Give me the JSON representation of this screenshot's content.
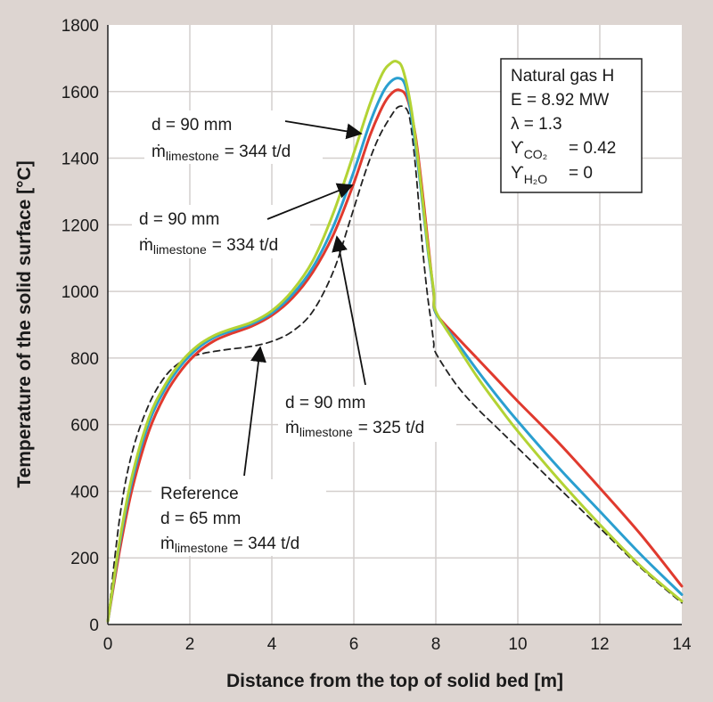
{
  "chart_data": {
    "type": "line",
    "title": "",
    "xlabel": "Distance from the top of solid bed [m]",
    "ylabel": "Temperature of the solid surface [°C]",
    "xlim": [
      0,
      14
    ],
    "ylim": [
      0,
      1800
    ],
    "xticks": [
      "0",
      "2",
      "4",
      "6",
      "8",
      "10",
      "12",
      "14"
    ],
    "yticks": [
      "0",
      "200",
      "400",
      "600",
      "800",
      "1000",
      "1200",
      "1400",
      "1600",
      "1800"
    ],
    "grid": true,
    "series": [
      {
        "name": "d = 90 mm, ṁlimestone = 344 t/d",
        "color": "#b3d334",
        "style": "solid",
        "x": [
          0,
          0.3,
          0.6,
          1.0,
          1.4,
          1.8,
          2.2,
          2.6,
          3.0,
          3.5,
          4.0,
          4.5,
          5.0,
          5.5,
          6.0,
          6.4,
          6.7,
          6.9,
          7.05,
          7.2,
          7.4,
          7.6,
          7.8,
          7.95,
          8.0,
          8.5,
          9.0,
          9.5,
          10.0,
          11.0,
          12.0,
          13.0,
          14.0
        ],
        "values": [
          10,
          260,
          450,
          620,
          720,
          790,
          838,
          868,
          887,
          907,
          942,
          1002,
          1092,
          1235,
          1415,
          1565,
          1655,
          1685,
          1690,
          1665,
          1550,
          1360,
          1140,
          1000,
          940,
          840,
          745,
          660,
          580,
          435,
          300,
          175,
          70
        ]
      },
      {
        "name": "d = 90 mm, ṁlimestone = 334 t/d",
        "color": "#2a9fd0",
        "style": "solid",
        "x": [
          0,
          0.3,
          0.6,
          1.0,
          1.4,
          1.8,
          2.2,
          2.6,
          3.0,
          3.5,
          4.0,
          4.5,
          5.0,
          5.5,
          6.0,
          6.4,
          6.7,
          6.9,
          7.1,
          7.25,
          7.4,
          7.6,
          7.8,
          7.95,
          8.0,
          8.5,
          9.0,
          9.5,
          10.0,
          11.0,
          12.0,
          13.0,
          14.0
        ],
        "values": [
          10,
          250,
          435,
          605,
          708,
          780,
          830,
          862,
          881,
          902,
          935,
          990,
          1072,
          1195,
          1360,
          1508,
          1595,
          1630,
          1640,
          1620,
          1530,
          1345,
          1130,
          995,
          935,
          850,
          765,
          685,
          610,
          470,
          340,
          210,
          90
        ]
      },
      {
        "name": "d = 90 mm, ṁlimestone = 325 t/d",
        "color": "#e03a2e",
        "style": "solid",
        "x": [
          0,
          0.3,
          0.6,
          1.0,
          1.4,
          1.8,
          2.2,
          2.6,
          3.0,
          3.5,
          4.0,
          4.5,
          5.0,
          5.5,
          6.0,
          6.4,
          6.7,
          6.9,
          7.1,
          7.3,
          7.5,
          7.7,
          7.85,
          7.95,
          8.0,
          8.5,
          9.0,
          9.5,
          10.0,
          11.0,
          12.0,
          13.0,
          14.0
        ],
        "values": [
          10,
          230,
          410,
          580,
          690,
          765,
          818,
          852,
          873,
          895,
          928,
          980,
          1058,
          1170,
          1325,
          1470,
          1555,
          1592,
          1605,
          1580,
          1470,
          1270,
          1100,
          990,
          935,
          865,
          800,
          735,
          670,
          545,
          410,
          270,
          115
        ]
      },
      {
        "name": "Reference, d = 65 mm, ṁlimestone = 344 t/d",
        "color": "#222222",
        "style": "dashed",
        "x": [
          0,
          0.3,
          0.6,
          1.0,
          1.4,
          1.8,
          2.2,
          2.6,
          3.0,
          3.5,
          4.0,
          4.5,
          5.0,
          5.5,
          5.9,
          6.3,
          6.6,
          6.9,
          7.1,
          7.3,
          7.4,
          7.5,
          7.6,
          7.7,
          7.8,
          7.9,
          7.95,
          8.0,
          8.5,
          9.0,
          9.5,
          10.0,
          11.0,
          12.0,
          13.0,
          14.0
        ],
        "values": [
          10,
          330,
          520,
          660,
          745,
          790,
          810,
          820,
          827,
          835,
          850,
          880,
          940,
          1060,
          1210,
          1365,
          1460,
          1525,
          1555,
          1545,
          1490,
          1380,
          1240,
          1100,
          985,
          895,
          845,
          815,
          720,
          650,
          590,
          530,
          410,
          290,
          170,
          65
        ]
      }
    ],
    "info_box": {
      "line1": "Natural gas H",
      "line2": "E = 8.92 MW",
      "line3": "λ = 1.3",
      "line4_symbol": "ϒ",
      "line4_sub": "CO₂",
      "line4_value": "= 0.42",
      "line5_symbol": "ϒ",
      "line5_sub": "H₂O",
      "line5_value": "= 0"
    },
    "annotations": [
      {
        "line1": "d = 90 mm",
        "mdot": "ṁ",
        "sub": "limestone",
        "value": "= 344 t/d"
      },
      {
        "line1": "d = 90 mm",
        "mdot": "ṁ",
        "sub": "limestone",
        "value": "= 334 t/d"
      },
      {
        "line1": "d = 90 mm",
        "mdot": "ṁ",
        "sub": "limestone",
        "value": "= 325 t/d"
      },
      {
        "line0": "Reference",
        "line1": "d = 65 mm",
        "mdot": "ṁ",
        "sub": "limestone",
        "value": "= 344 t/d"
      }
    ]
  }
}
